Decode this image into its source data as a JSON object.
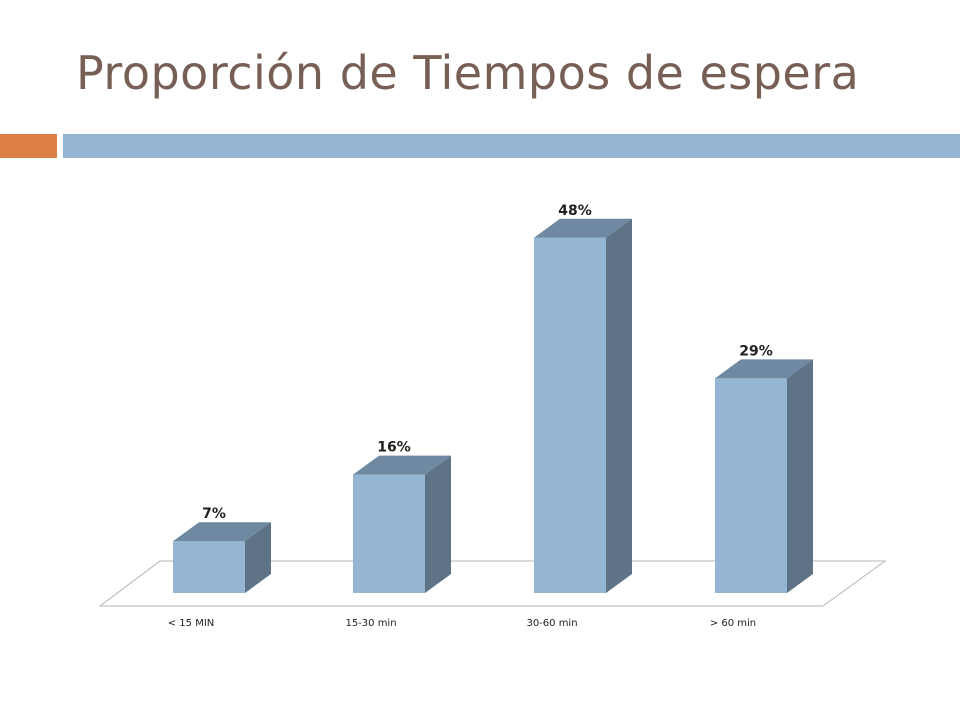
{
  "slide": {
    "title": "Proporción de Tiempos de espera",
    "accent_color": "#dd8047",
    "rule_color": "#94b6d2"
  },
  "chart_data": {
    "type": "bar",
    "style": "3d-column",
    "categories": [
      "< 15 MIN",
      "15-30 min",
      "30-60 min",
      "> 60 min"
    ],
    "values": [
      7,
      16,
      48,
      29
    ],
    "value_labels": [
      "7%",
      "16%",
      "48%",
      "29%"
    ],
    "unit": "%",
    "ylim": [
      0,
      50
    ],
    "grid": false,
    "legend": "none",
    "colors": {
      "front": "#94b6d2",
      "top": "#6f89a2",
      "side": "#5e7486"
    }
  }
}
